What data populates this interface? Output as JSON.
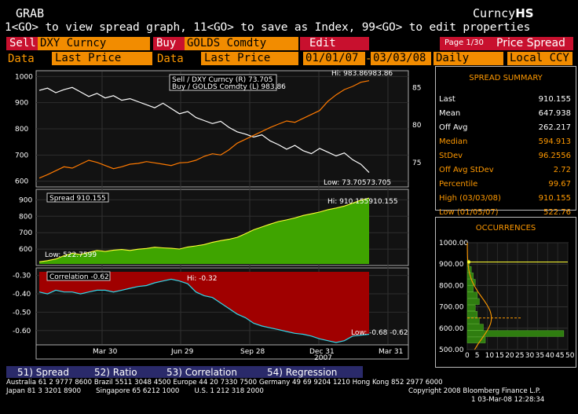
{
  "header": {
    "grab": "GRAB",
    "brand_prefix": "Curncy",
    "brand_bold": "HS",
    "instructions": "1<GO> to view spread graph, 11<GO> to save as Index, 99<GO> to edit properties"
  },
  "toolbar": {
    "sell_label": "Sell",
    "sell_value": "DXY Curncy",
    "buy_label": "Buy",
    "buy_value": "GOLDS Comdty",
    "edit_label": "Edit",
    "page": "Page 1/30",
    "title": "Price Spread",
    "data_label_1": "Data",
    "data_value_1": "Last Price",
    "data_label_2": "Data",
    "data_value_2": "Last Price",
    "date_start": "01/01/07",
    "date_end": "03/03/08",
    "period": "Daily",
    "currency": "Local CCY"
  },
  "colors": {
    "accent_red": "#c8102e",
    "accent_orange": "#f28c00",
    "spread_green": "#3fa400",
    "correlation_red": "#a00000",
    "correlation_line": "#33d6e8",
    "dxy_line": "#ffffff",
    "gold_line": "#ff7a00"
  },
  "spread_summary": {
    "title": "SPREAD SUMMARY",
    "rows": [
      {
        "label": "Last",
        "value": "910.155",
        "color": "#ffffff"
      },
      {
        "label": "Mean",
        "value": "647.938",
        "color": "#ffffff"
      },
      {
        "label": "Off Avg",
        "value": "262.217",
        "color": "#ffffff"
      },
      {
        "label": "Median",
        "value": "594.913",
        "color": "#ff9900"
      },
      {
        "label": "StDev",
        "value": "96.2556",
        "color": "#ff9900"
      },
      {
        "label": "Off Avg StDev",
        "value": "2.72",
        "color": "#ff9900"
      },
      {
        "label": "Percentile",
        "value": "99.67",
        "color": "#ff9900"
      },
      {
        "label": "High (03/03/08)",
        "value": "910.155",
        "color": "#ff9900"
      },
      {
        "label": "Low (01/05/07)",
        "value": "522.76",
        "color": "#ff9900"
      }
    ]
  },
  "occurrences": {
    "title": "OCCURRENCES",
    "y_ticks": [
      "1000.00",
      "900.00",
      "800.00",
      "700.00",
      "600.00",
      "500.00"
    ],
    "x_ticks": [
      "0",
      "5",
      "10",
      "15",
      "20",
      "25",
      "30",
      "35",
      "40",
      "45",
      "50"
    ],
    "bins": [
      {
        "center": 905,
        "count": 1
      },
      {
        "center": 875,
        "count": 2
      },
      {
        "center": 845,
        "count": 3
      },
      {
        "center": 815,
        "count": 4
      },
      {
        "center": 785,
        "count": 3
      },
      {
        "center": 755,
        "count": 5
      },
      {
        "center": 725,
        "count": 6
      },
      {
        "center": 695,
        "count": 4
      },
      {
        "center": 665,
        "count": 5
      },
      {
        "center": 635,
        "count": 6
      },
      {
        "center": 605,
        "count": 8
      },
      {
        "center": 575,
        "count": 48
      },
      {
        "center": 545,
        "count": 9
      }
    ]
  },
  "chart_data": [
    {
      "type": "line",
      "legend": [
        "Sell / DXY Curncy (R)   73.705",
        "Buy / GOLDS Comdty (L)  983.86"
      ],
      "left_ticks": [
        "1000",
        "900",
        "800",
        "700",
        "600"
      ],
      "right_ticks": [
        "85",
        "80",
        "75"
      ],
      "ylim_left": [
        590,
        1010
      ],
      "ylim_right": [
        72.2,
        86.8
      ],
      "hi_label": "Hi: 983.86983.86",
      "low_label": "Low: 73.70573.705",
      "series": [
        {
          "name": "Sell / DXY Curncy (R)",
          "axis": "right",
          "color": "#ffffff",
          "values": [
            84.6,
            84.9,
            84.3,
            84.7,
            85.0,
            84.4,
            83.8,
            84.2,
            83.6,
            83.9,
            83.3,
            83.5,
            83.1,
            82.7,
            82.3,
            82.9,
            82.2,
            81.5,
            81.8,
            81.0,
            80.6,
            80.2,
            80.5,
            79.7,
            79.1,
            78.8,
            78.4,
            78.7,
            77.9,
            77.4,
            76.8,
            77.3,
            76.6,
            76.2,
            76.9,
            76.4,
            75.9,
            76.3,
            75.4,
            74.8,
            73.7
          ]
        },
        {
          "name": "Buy / GOLDS Comdty (L)",
          "axis": "left",
          "color": "#ff7a00",
          "values": [
            612,
            625,
            640,
            655,
            650,
            665,
            680,
            672,
            660,
            648,
            655,
            665,
            668,
            675,
            670,
            665,
            660,
            670,
            672,
            680,
            695,
            705,
            700,
            720,
            745,
            760,
            775,
            790,
            805,
            818,
            830,
            825,
            840,
            855,
            870,
            905,
            930,
            950,
            962,
            978,
            983.86
          ]
        }
      ]
    },
    {
      "type": "area",
      "series_name": "Spread",
      "label": "Spread  910.155",
      "ticks": [
        "900",
        "800",
        "700",
        "600"
      ],
      "ylim": [
        510,
        940
      ],
      "hi_label": "Hi: 910.155910.155",
      "low_label": "Low: 522.7599",
      "values": [
        522.76,
        530,
        540,
        560,
        575,
        568,
        580,
        592,
        586,
        594,
        598,
        592,
        600,
        604,
        612,
        608,
        605,
        601,
        613,
        620,
        628,
        642,
        652,
        660,
        672,
        694,
        718,
        735,
        752,
        768,
        778,
        790,
        805,
        815,
        826,
        840,
        850,
        862,
        880,
        898,
        910.155
      ]
    },
    {
      "type": "area",
      "series_name": "Correlation",
      "label": "Correlation  -0.62",
      "ticks": [
        "-0.30",
        "-0.40",
        "-0.50",
        "-0.60"
      ],
      "ylim": [
        -0.665,
        -0.28
      ],
      "hi_label": "Hi: -0.32",
      "low_label": "Low: -0.68 -0.62",
      "values": [
        -0.39,
        -0.4,
        -0.38,
        -0.39,
        -0.39,
        -0.4,
        -0.39,
        -0.38,
        -0.38,
        -0.39,
        -0.38,
        -0.37,
        -0.36,
        -0.355,
        -0.34,
        -0.33,
        -0.32,
        -0.33,
        -0.345,
        -0.39,
        -0.41,
        -0.42,
        -0.45,
        -0.48,
        -0.51,
        -0.53,
        -0.56,
        -0.575,
        -0.585,
        -0.595,
        -0.605,
        -0.615,
        -0.62,
        -0.63,
        -0.645,
        -0.655,
        -0.665,
        -0.655,
        -0.63,
        -0.625,
        -0.62
      ]
    }
  ],
  "x_axis": {
    "ticks": [
      "Mar 30",
      "Jun 29",
      "Sep 28",
      "Dec 31",
      "Mar 31"
    ],
    "year": "2007"
  },
  "fkeys": [
    {
      "label": "51) Spread"
    },
    {
      "label": "52) Ratio"
    },
    {
      "label": "53) Correlation"
    },
    {
      "label": "54) Regression"
    }
  ],
  "footer": {
    "line1": "Australia 61 2 9777 8600 Brazil 5511 3048 4500 Europe 44 20 7330 7500 Germany 49 69 9204 1210 Hong Kong 852 2977 6000",
    "line2_left": "Japan 81 3 3201 8900       Singapore 65 6212 1000       U.S. 1 212 318 2000",
    "line2_right": "Copyright 2008 Bloomberg Finance L.P.",
    "line3": "1 03-Mar-08 12:28:34"
  }
}
